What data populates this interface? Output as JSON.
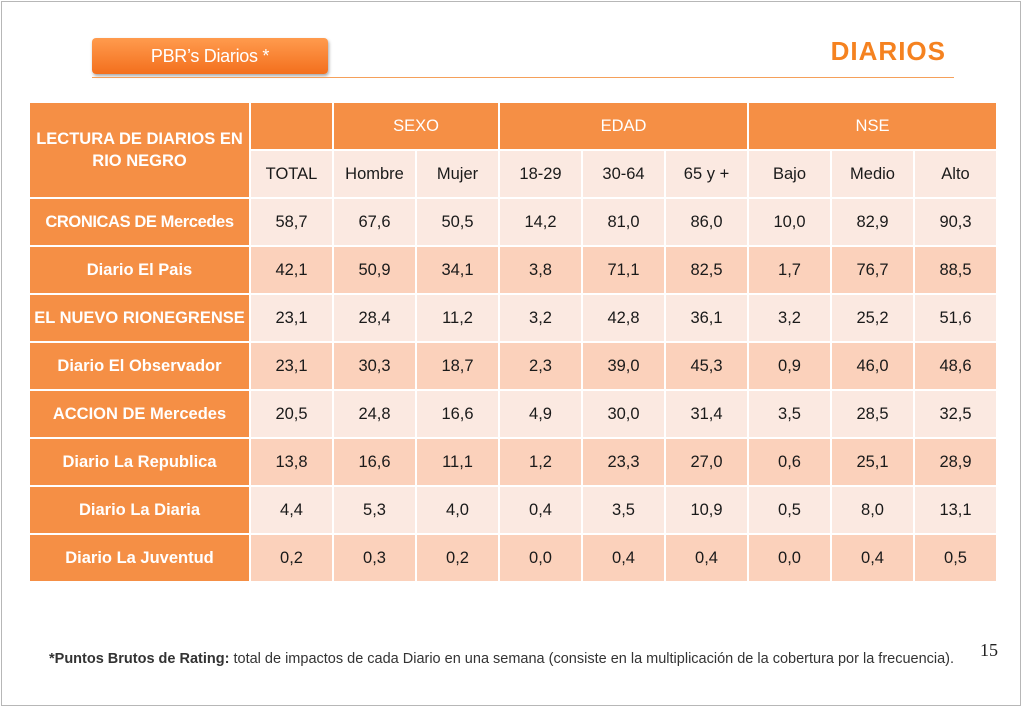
{
  "header": {
    "tab_label": "PBR’s Diarios  *",
    "title": "DIARIOS"
  },
  "table": {
    "corner_label": "LECTURA DE DIARIOS EN RIO NEGRO",
    "groups": [
      "SEXO",
      "EDAD",
      "NSE"
    ],
    "columns": [
      "TOTAL",
      "Hombre",
      "Mujer",
      "18-29",
      "30-64",
      "65 y +",
      "Bajo",
      "Medio",
      "Alto"
    ],
    "rows": [
      {
        "label": "CRONICAS DE Mercedes",
        "values": [
          "58,7",
          "67,6",
          "50,5",
          "14,2",
          "81,0",
          "86,0",
          "10,0",
          "82,9",
          "90,3"
        ]
      },
      {
        "label": "Diario El Pais",
        "values": [
          "42,1",
          "50,9",
          "34,1",
          "3,8",
          "71,1",
          "82,5",
          "1,7",
          "76,7",
          "88,5"
        ]
      },
      {
        "label": "EL NUEVO RIONEGRENSE",
        "values": [
          "23,1",
          "28,4",
          "11,2",
          "3,2",
          "42,8",
          "36,1",
          "3,2",
          "25,2",
          "51,6"
        ]
      },
      {
        "label": "Diario El Observador",
        "values": [
          "23,1",
          "30,3",
          "18,7",
          "2,3",
          "39,0",
          "45,3",
          "0,9",
          "46,0",
          "48,6"
        ]
      },
      {
        "label": "ACCION DE Mercedes",
        "values": [
          "20,5",
          "24,8",
          "16,6",
          "4,9",
          "30,0",
          "31,4",
          "3,5",
          "28,5",
          "32,5"
        ]
      },
      {
        "label": "Diario La Republica",
        "values": [
          "13,8",
          "16,6",
          "11,1",
          "1,2",
          "23,3",
          "27,0",
          "0,6",
          "25,1",
          "28,9"
        ]
      },
      {
        "label": "Diario La Diaria",
        "values": [
          "4,4",
          "5,3",
          "4,0",
          "0,4",
          "3,5",
          "10,9",
          "0,5",
          "8,0",
          "13,1"
        ]
      },
      {
        "label": "Diario La Juventud",
        "values": [
          "0,2",
          "0,3",
          "0,2",
          "0,0",
          "0,4",
          "0,4",
          "0,0",
          "0,4",
          "0,5"
        ]
      }
    ]
  },
  "footer": {
    "page_number": "15",
    "footnote_bold": "*Puntos Brutos de Rating:",
    "footnote_text": " total de impactos de cada Diario en una semana (consiste en la multiplicación de la cobertura por la frecuencia)."
  }
}
